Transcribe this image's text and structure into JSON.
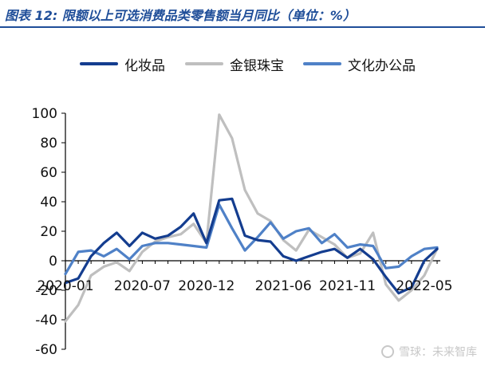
{
  "header": {
    "title": "图表 12: 限额以上可选消费品类零售额当月同比（单位：%）"
  },
  "watermark": {
    "text": "雪球：未来智库"
  },
  "colors": {
    "accent": "#1f4e99"
  },
  "chart_data": {
    "type": "line",
    "title": "图表 12: 限额以上可选消费品类零售额当月同比（单位：%）",
    "xlabel": "",
    "ylabel": "",
    "ylim": [
      -60,
      100
    ],
    "yticks": [
      -60,
      -40,
      -20,
      0,
      20,
      40,
      60,
      80,
      100
    ],
    "x": [
      "2020-01",
      "2020-02",
      "2020-03",
      "2020-04",
      "2020-05",
      "2020-06",
      "2020-07",
      "2020-08",
      "2020-09",
      "2020-10",
      "2020-11",
      "2020-12",
      "2021-01",
      "2021-02",
      "2021-03",
      "2021-04",
      "2021-05",
      "2021-06",
      "2021-07",
      "2021-08",
      "2021-09",
      "2021-10",
      "2021-11",
      "2021-12",
      "2022-01",
      "2022-02",
      "2022-03",
      "2022-04",
      "2022-05",
      "2022-06"
    ],
    "xtick_labels": [
      "2020-01",
      "2020-07",
      "2020-12",
      "2021-06",
      "2021-11",
      "2022-05"
    ],
    "grid": false,
    "legend": "top-center",
    "series": [
      {
        "name": "化妆品",
        "color": "#143d8f",
        "values": [
          -15,
          -12,
          3,
          12,
          19,
          10,
          19,
          15,
          17,
          23,
          32,
          12,
          41,
          42,
          17,
          14,
          13,
          3,
          0,
          3,
          6,
          8,
          2,
          8,
          1,
          -11,
          -22,
          -18,
          0,
          8
        ]
      },
      {
        "name": "金银珠宝",
        "color": "#bfbfbf",
        "values": [
          -41,
          -30,
          -10,
          -4,
          -1,
          -7,
          6,
          13,
          16,
          18,
          25,
          12,
          99,
          83,
          48,
          32,
          27,
          14,
          7,
          21,
          16,
          11,
          2,
          5,
          19,
          -16,
          -27,
          -20,
          -10,
          8
        ]
      },
      {
        "name": "文化办公品",
        "color": "#4f81c7",
        "values": [
          -9,
          6,
          7,
          3,
          8,
          1,
          10,
          12,
          12,
          11,
          10,
          9,
          38,
          22,
          7,
          16,
          26,
          15,
          20,
          22,
          12,
          18,
          9,
          11,
          10,
          -5,
          -4,
          3,
          8,
          9
        ]
      }
    ]
  }
}
